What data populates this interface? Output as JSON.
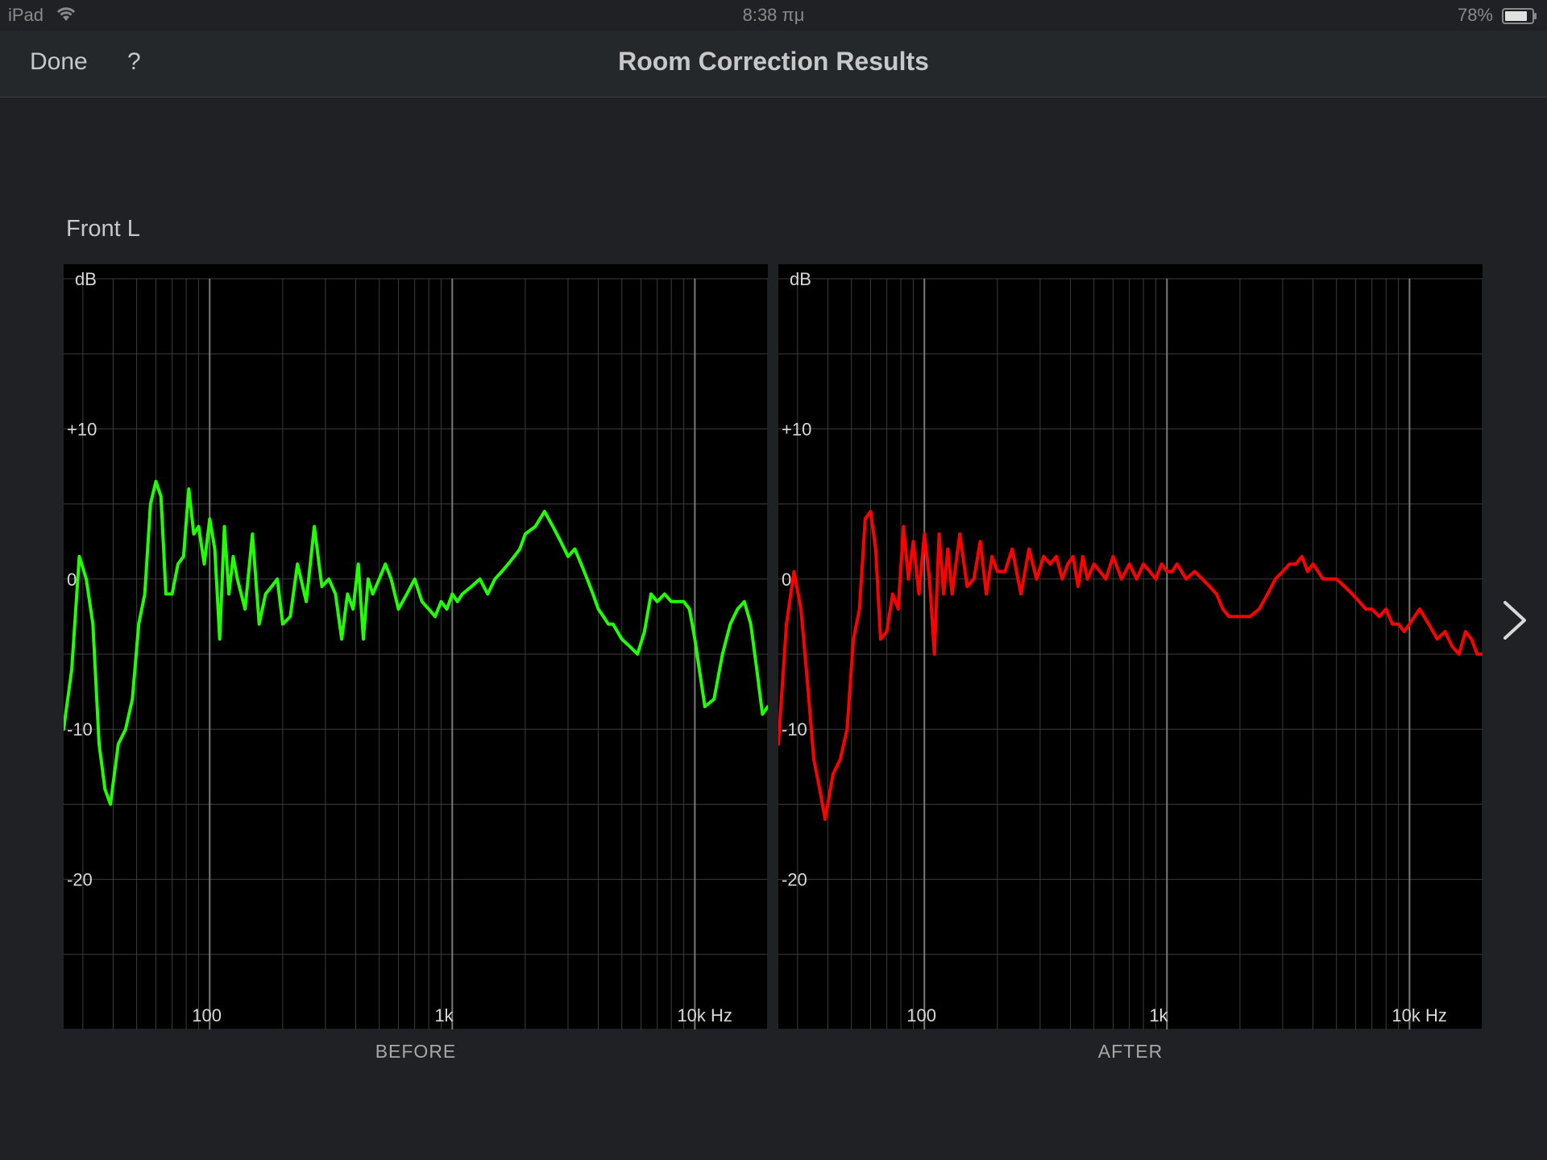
{
  "status_bar": {
    "carrier": "iPad",
    "time": "8:38 πμ",
    "battery": "78%"
  },
  "navbar": {
    "done_label": "Done",
    "help_label": "?",
    "title": "Room Correction Results"
  },
  "channel": "Front L",
  "colors": {
    "before": "#22ff00",
    "after": "#ff0000",
    "background": "#1f2124",
    "plot_background": "#000000"
  },
  "chart_data": [
    {
      "type": "line",
      "caption": "BEFORE",
      "ylabel": "dB",
      "xscale": "log",
      "xlim": [
        25,
        20000
      ],
      "ylim": [
        -30,
        20
      ],
      "y_ticks": [
        {
          "value": 10,
          "label": "+10"
        },
        {
          "value": 0,
          "label": "0"
        },
        {
          "value": -10,
          "label": "-10"
        },
        {
          "value": -20,
          "label": "-20"
        }
      ],
      "x_ticks": [
        {
          "value": 100,
          "label": "100"
        },
        {
          "value": 1000,
          "label": "1k"
        },
        {
          "value": 10000,
          "label": "10k Hz"
        }
      ],
      "grid": true,
      "series": [
        {
          "color": "#22ff00",
          "x": [
            25,
            27,
            29,
            31,
            33,
            35,
            37,
            39,
            42,
            45,
            48,
            51,
            54,
            57,
            60,
            63,
            66,
            70,
            74,
            78,
            82,
            86,
            90,
            95,
            100,
            105,
            110,
            115,
            120,
            125,
            130,
            140,
            150,
            160,
            170,
            180,
            190,
            200,
            215,
            230,
            250,
            270,
            290,
            310,
            330,
            350,
            370,
            390,
            410,
            430,
            450,
            470,
            500,
            530,
            560,
            600,
            650,
            700,
            750,
            800,
            850,
            900,
            950,
            1000,
            1050,
            1100,
            1200,
            1300,
            1400,
            1500,
            1600,
            1700,
            1800,
            1900,
            2000,
            2200,
            2400,
            2600,
            2800,
            3000,
            3200,
            3400,
            3600,
            3800,
            4000,
            4200,
            4400,
            4600,
            5000,
            5400,
            5800,
            6200,
            6600,
            7000,
            7500,
            8000,
            8500,
            9000,
            9500,
            10000,
            11000,
            12000,
            13000,
            14000,
            15000,
            16000,
            17000,
            18000,
            19000,
            20000
          ],
          "y": [
            -10,
            -6,
            1.5,
            0,
            -3,
            -11,
            -14,
            -15,
            -11,
            -10,
            -8,
            -3,
            -1,
            5,
            6.5,
            5.5,
            -1,
            -1,
            1,
            1.5,
            6,
            3,
            3.5,
            1,
            4,
            2,
            -4,
            3.5,
            -1,
            1.5,
            0,
            -2,
            3,
            -3,
            -1,
            -0.5,
            0,
            -3,
            -2.5,
            1,
            -1.5,
            3.5,
            -0.5,
            0,
            -1,
            -4,
            -1,
            -2,
            1,
            -4,
            0,
            -1,
            0,
            1,
            0,
            -2,
            -1,
            0,
            -1.5,
            -2,
            -2.5,
            -1.5,
            -2,
            -1,
            -1.5,
            -1,
            -0.5,
            0,
            -1,
            0,
            0.5,
            1,
            1.5,
            2,
            3,
            3.5,
            4.5,
            3.5,
            2.5,
            1.5,
            2,
            1,
            0,
            -1,
            -2,
            -2.5,
            -3,
            -3,
            -4,
            -4.5,
            -5,
            -3.5,
            -1,
            -1.5,
            -1,
            -1.5,
            -1.5,
            -1.5,
            -2,
            -4,
            -8.5,
            -8,
            -5,
            -3,
            -2,
            -1.5,
            -3,
            -6,
            -9,
            -8.5
          ]
        }
      ]
    },
    {
      "type": "line",
      "caption": "AFTER",
      "ylabel": "dB",
      "xscale": "log",
      "xlim": [
        25,
        20000
      ],
      "ylim": [
        -30,
        20
      ],
      "y_ticks": [
        {
          "value": 10,
          "label": "+10"
        },
        {
          "value": 0,
          "label": "0"
        },
        {
          "value": -10,
          "label": "-10"
        },
        {
          "value": -20,
          "label": "-20"
        }
      ],
      "x_ticks": [
        {
          "value": 100,
          "label": "100"
        },
        {
          "value": 1000,
          "label": "1k"
        },
        {
          "value": 10000,
          "label": "10k Hz"
        }
      ],
      "grid": true,
      "series": [
        {
          "color": "#ff0000",
          "x": [
            25,
            27,
            29,
            31,
            33,
            35,
            37,
            39,
            42,
            45,
            48,
            51,
            54,
            57,
            60,
            63,
            66,
            70,
            74,
            78,
            82,
            86,
            90,
            95,
            100,
            105,
            110,
            115,
            120,
            125,
            130,
            140,
            150,
            160,
            170,
            180,
            190,
            200,
            215,
            230,
            250,
            270,
            290,
            310,
            330,
            350,
            370,
            390,
            410,
            430,
            450,
            470,
            500,
            530,
            560,
            600,
            650,
            700,
            750,
            800,
            850,
            900,
            950,
            1000,
            1050,
            1100,
            1200,
            1300,
            1400,
            1500,
            1600,
            1700,
            1800,
            1900,
            2000,
            2200,
            2400,
            2600,
            2800,
            3000,
            3200,
            3400,
            3600,
            3800,
            4000,
            4200,
            4400,
            4600,
            5000,
            5400,
            5800,
            6200,
            6600,
            7000,
            7500,
            8000,
            8500,
            9000,
            9500,
            10000,
            11000,
            12000,
            13000,
            14000,
            15000,
            16000,
            17000,
            18000,
            19000,
            20000
          ],
          "y": [
            -11,
            -3,
            0.5,
            -2,
            -7,
            -12,
            -14,
            -16,
            -13,
            -12,
            -10,
            -4,
            -2,
            4,
            4.5,
            2,
            -4,
            -3.5,
            -1,
            -2,
            3.5,
            0,
            2.5,
            -1,
            3,
            0,
            -5,
            3,
            -1,
            2,
            -1,
            3,
            -0.5,
            0,
            2.5,
            -1,
            1.5,
            0.5,
            0.5,
            2,
            -1,
            2,
            0,
            1.5,
            1,
            1.5,
            0,
            1,
            1.5,
            -0.5,
            1.5,
            0,
            1,
            0.5,
            0,
            1.5,
            0,
            1,
            0,
            1,
            0.5,
            0,
            1,
            0.5,
            0.5,
            1,
            0,
            0.5,
            0,
            -0.5,
            -1,
            -2,
            -2.5,
            -2.5,
            -2.5,
            -2.5,
            -2,
            -1,
            0,
            0.5,
            1,
            1,
            1.5,
            0.5,
            1,
            0.5,
            0,
            0,
            0,
            -0.5,
            -1,
            -1.5,
            -2,
            -2,
            -2.5,
            -2,
            -3,
            -3,
            -3.5,
            -3,
            -2,
            -3,
            -4,
            -3.5,
            -4.5,
            -5,
            -3.5,
            -4,
            -5,
            -5
          ]
        }
      ]
    }
  ],
  "navigation": {
    "next_icon": "chevron-right-icon"
  }
}
